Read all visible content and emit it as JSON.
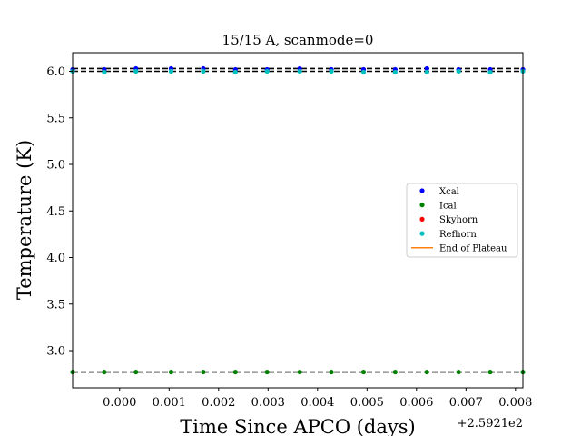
{
  "chart_data": {
    "type": "scatter",
    "title": "15/15 A, scanmode=0",
    "xlabel": "Time Since APCO (days)",
    "ylabel": "Temperature (K)",
    "x_offset_label": "+2.5921e2",
    "xlim": [
      -0.00095,
      0.00815
    ],
    "ylim": [
      2.6,
      6.2
    ],
    "xticks": [
      0.0,
      0.001,
      0.002,
      0.003,
      0.004,
      0.005,
      0.006,
      0.007,
      0.008
    ],
    "xtick_labels": [
      "0.000",
      "0.001",
      "0.002",
      "0.003",
      "0.004",
      "0.005",
      "0.006",
      "0.007",
      "0.008"
    ],
    "yticks": [
      3.0,
      3.5,
      4.0,
      4.5,
      5.0,
      5.5,
      6.0
    ],
    "ytick_labels": [
      "3.0",
      "3.5",
      "4.0",
      "4.5",
      "5.0",
      "5.5",
      "6.0"
    ],
    "legend_position": "center-right",
    "reference_lines": [
      6.03,
      6.0,
      2.77
    ],
    "x": [
      -0.00095,
      -0.00031,
      0.00033,
      0.00104,
      0.00169,
      0.00234,
      0.00298,
      0.00364,
      0.00428,
      0.00493,
      0.00557,
      0.00621,
      0.00685,
      0.00749,
      0.00815
    ],
    "series": [
      {
        "name": "Xcal",
        "color": "#0000ff",
        "values": [
          6.02,
          6.02,
          6.03,
          6.03,
          6.03,
          6.02,
          6.02,
          6.03,
          6.02,
          6.02,
          6.02,
          6.03,
          6.02,
          6.02,
          6.02
        ]
      },
      {
        "name": "Ical",
        "color": "#008000",
        "values": [
          2.77,
          2.77,
          2.77,
          2.77,
          2.77,
          2.77,
          2.77,
          2.77,
          2.77,
          2.77,
          2.77,
          2.77,
          2.77,
          2.77,
          2.77
        ]
      },
      {
        "name": "Skyhorn",
        "color": "#ff0000",
        "values": []
      },
      {
        "name": "Refhorn",
        "color": "#00bfbf",
        "values": [
          6.0,
          5.99,
          6.0,
          6.0,
          6.0,
          5.99,
          6.0,
          6.0,
          6.0,
          5.99,
          5.99,
          5.99,
          6.0,
          5.99,
          6.0
        ]
      }
    ],
    "legend_entries": [
      {
        "label": "Xcal",
        "marker": "point",
        "color": "#0000ff"
      },
      {
        "label": "Ical",
        "marker": "point",
        "color": "#008000"
      },
      {
        "label": "Skyhorn",
        "marker": "point",
        "color": "#ff0000"
      },
      {
        "label": "Refhorn",
        "marker": "point",
        "color": "#00bfbf"
      },
      {
        "label": "End of Plateau",
        "marker": "line",
        "color": "#ff7f0e"
      }
    ]
  }
}
